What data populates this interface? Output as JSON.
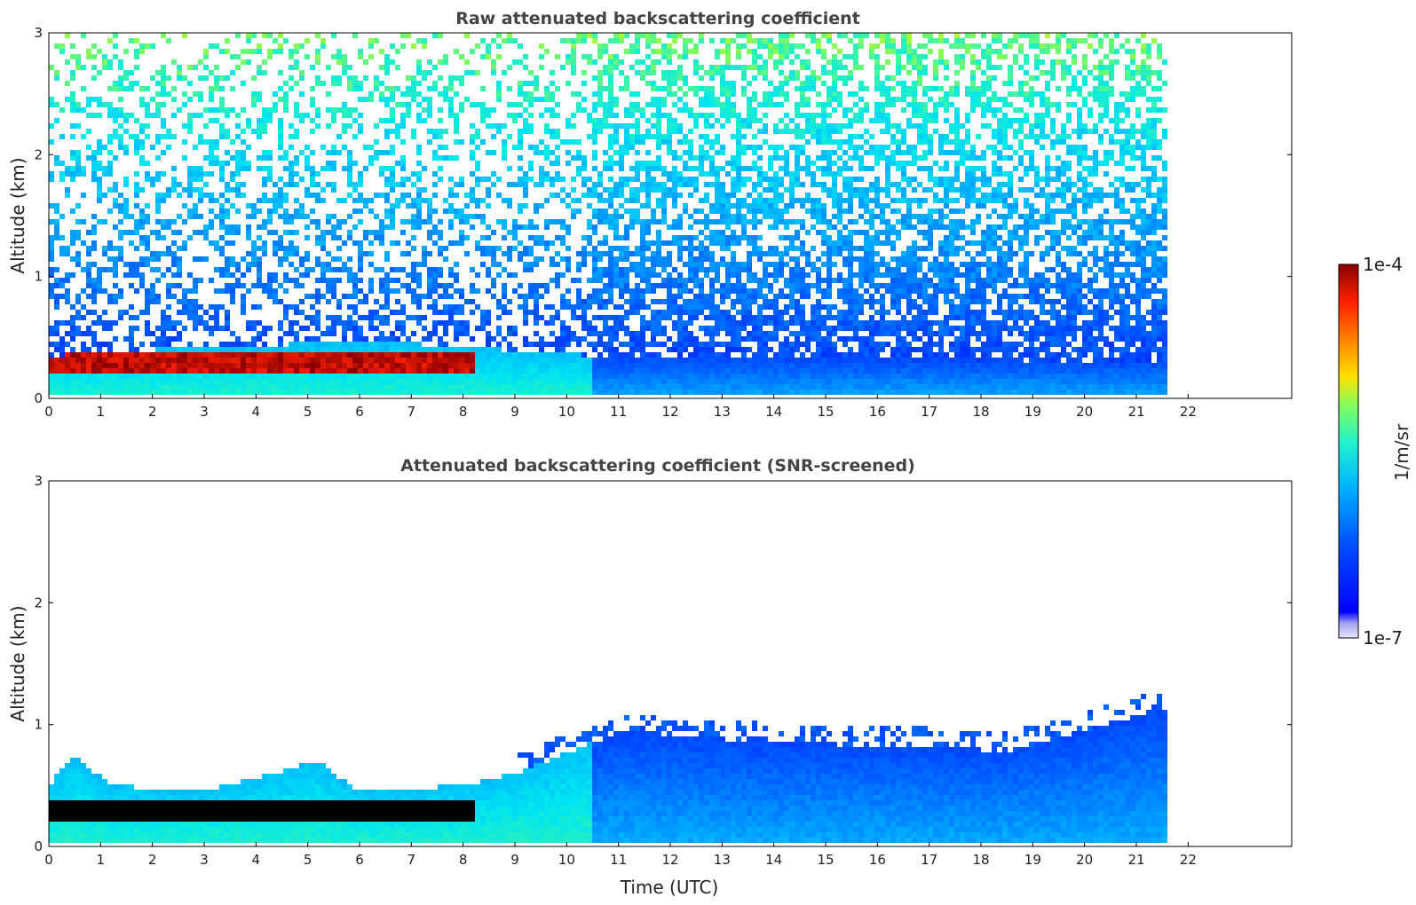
{
  "colors": {
    "colormap": [
      "#e6e6fa",
      "#c8c8f5",
      "#a0a0f0",
      "#0000ff",
      "#0050ff",
      "#00a0ff",
      "#00e0ff",
      "#30f0c0",
      "#80ff60",
      "#d0ff20",
      "#ffd000",
      "#ff8000",
      "#ff2000",
      "#c00000",
      "#8b0000"
    ],
    "masked": "#ffffff",
    "saturated_screened": "#000000"
  },
  "chart_data": [
    {
      "type": "heatmap",
      "title": "Raw attenuated backscattering coefficient",
      "xlabel": "",
      "ylabel": "Altitude (km)",
      "xlim": [
        0,
        24
      ],
      "ylim": [
        0,
        3
      ],
      "x_ticks": [
        "0",
        "1",
        "2",
        "3",
        "4",
        "5",
        "6",
        "7",
        "8",
        "9",
        "10",
        "11",
        "12",
        "13",
        "14",
        "15",
        "16",
        "17",
        "18",
        "19",
        "20",
        "21",
        "22"
      ],
      "y_ticks": [
        "0",
        "1",
        "2",
        "3"
      ],
      "data_end_time": 21.7,
      "features": {
        "aerosol_layer_top_km": [
          {
            "t": 0,
            "z": 0.35
          },
          {
            "t": 2,
            "z": 0.4
          },
          {
            "t": 5,
            "z": 0.45
          },
          {
            "t": 7,
            "z": 0.45
          },
          {
            "t": 8,
            "z": 0.42
          },
          {
            "t": 10.5,
            "z": 0.35
          },
          {
            "t": 21.7,
            "z": 0.3
          }
        ],
        "strong_layer_km": {
          "t_start": 0,
          "t_end": 8.2,
          "z_bottom": 0.2,
          "z_top": 0.4
        },
        "noise_region": "above 0.5 km, increasing with altitude"
      }
    },
    {
      "type": "heatmap",
      "title": "Attenuated backscattering coefficient (SNR-screened)",
      "xlabel": "Time (UTC)",
      "ylabel": "Altitude (km)",
      "xlim": [
        0,
        24
      ],
      "ylim": [
        0,
        3
      ],
      "x_ticks": [
        "0",
        "1",
        "2",
        "3",
        "4",
        "5",
        "6",
        "7",
        "8",
        "9",
        "10",
        "11",
        "12",
        "13",
        "14",
        "15",
        "16",
        "17",
        "18",
        "19",
        "20",
        "21",
        "22"
      ],
      "y_ticks": [
        "0",
        "1",
        "2",
        "3"
      ],
      "data_end_time": 21.7,
      "features": {
        "screened_top_km": [
          {
            "t": 0,
            "z": 0.5
          },
          {
            "t": 0.5,
            "z": 0.75
          },
          {
            "t": 1.2,
            "z": 0.5
          },
          {
            "t": 3,
            "z": 0.45
          },
          {
            "t": 5.2,
            "z": 0.7
          },
          {
            "t": 6,
            "z": 0.45
          },
          {
            "t": 8,
            "z": 0.5
          },
          {
            "t": 9,
            "z": 0.6
          },
          {
            "t": 10.5,
            "z": 0.85
          },
          {
            "t": 11,
            "z": 0.95
          },
          {
            "t": 14,
            "z": 0.85
          },
          {
            "t": 17,
            "z": 0.82
          },
          {
            "t": 18.5,
            "z": 0.78
          },
          {
            "t": 20,
            "z": 0.95
          },
          {
            "t": 21.7,
            "z": 1.15
          }
        ],
        "saturated_layer_km": {
          "t_start": 0,
          "t_end": 8.2,
          "z_bottom": 0.22,
          "z_top": 0.38
        }
      }
    }
  ],
  "colorbar": {
    "max_label": "1e-4",
    "min_label": "1e-7",
    "unit_label": "1/m/sr",
    "scale": "log"
  }
}
